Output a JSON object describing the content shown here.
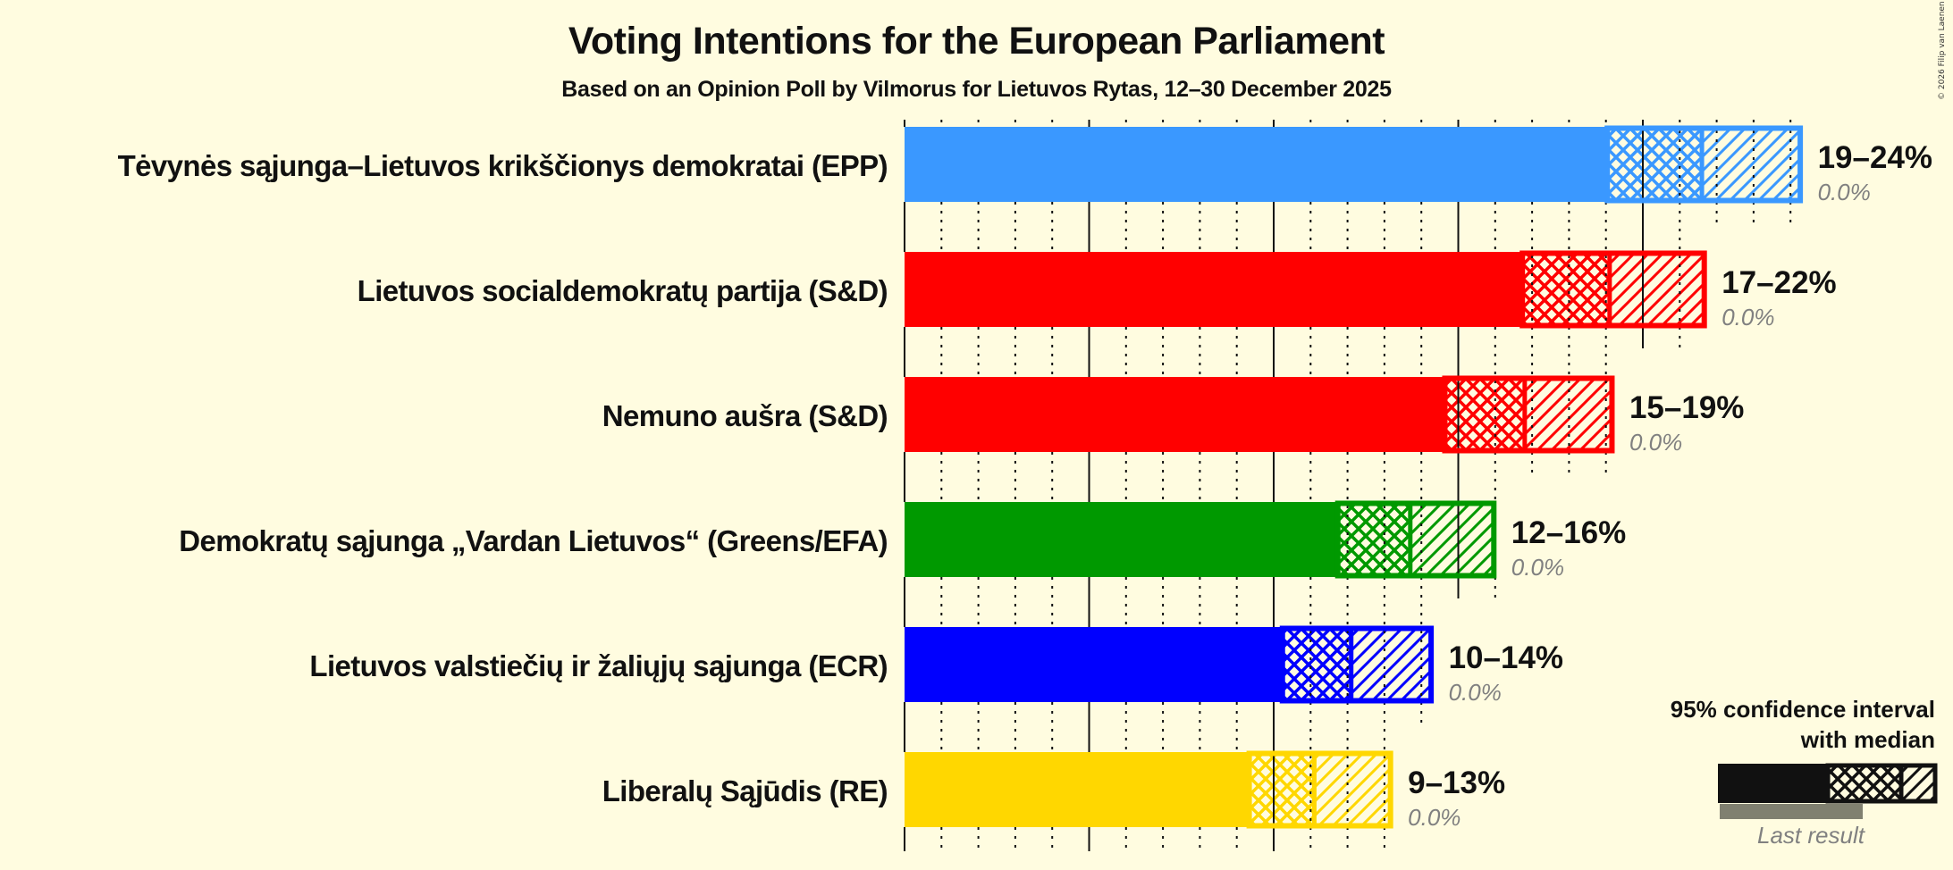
{
  "header": {
    "title": "Voting Intentions for the European Parliament",
    "subtitle": "Based on an Opinion Poll by Vilmorus for Lietuvos Rytas, 12–30 December 2025",
    "copyright": "© 2026 Filip van Laenen"
  },
  "legend": {
    "title_line1": "95% confidence interval",
    "title_line2": "with median",
    "last_result_label": "Last result"
  },
  "colors": {
    "background": "#fffce0",
    "EPP": "#3a98ff",
    "S&D": "#ff0000",
    "Greens/EFA": "#009900",
    "ECR": "#0000ff",
    "RE": "#ffd700",
    "legend": "#111111",
    "last_result": "#808070"
  },
  "chart_data": {
    "type": "bar",
    "orientation": "horizontal",
    "title": "Voting Intentions for the European Parliament",
    "subtitle": "Based on an Opinion Poll by Vilmorus for Lietuvos Rytas, 12–30 December 2025",
    "xlabel": "",
    "ylabel": "",
    "unit": "%",
    "xlim": [
      0,
      25
    ],
    "grid": {
      "major_every": 5,
      "minor_every": 1
    },
    "legend_position": "bottom-right",
    "categories": [
      "Tėvynės sąjunga–Lietuvos krikščionys demokratai (EPP)",
      "Lietuvos socialdemokratų partija (S&D)",
      "Nemuno aušra (S&D)",
      "Demokratų sąjunga „Vardan Lietuvos“ (Greens/EFA)",
      "Lietuvos valstiečių ir žaliųjų sąjunga (ECR)",
      "Liberalų Sąjūdis (RE)"
    ],
    "series": [
      {
        "name": "CI lower (95%)",
        "values": [
          19.0,
          16.7,
          14.6,
          11.7,
          10.2,
          9.3
        ]
      },
      {
        "name": "Median",
        "values": [
          21.6,
          19.1,
          16.8,
          13.7,
          12.1,
          11.1
        ]
      },
      {
        "name": "CI upper (95%)",
        "values": [
          24.3,
          21.7,
          19.2,
          16.0,
          14.3,
          13.2
        ]
      },
      {
        "name": "Last result",
        "values": [
          0.0,
          0.0,
          0.0,
          0.0,
          0.0,
          0.0
        ]
      }
    ],
    "rows": [
      {
        "label": "Tėvynės sąjunga–Lietuvos krikščionys demokratai (EPP)",
        "group": "EPP",
        "low": 19.0,
        "median": 21.6,
        "high": 24.3,
        "range_label": "19–24%",
        "last_result": "0.0%"
      },
      {
        "label": "Lietuvos socialdemokratų partija (S&D)",
        "group": "S&D",
        "low": 16.7,
        "median": 19.1,
        "high": 21.7,
        "range_label": "17–22%",
        "last_result": "0.0%"
      },
      {
        "label": "Nemuno aušra (S&D)",
        "group": "S&D",
        "low": 14.6,
        "median": 16.8,
        "high": 19.2,
        "range_label": "15–19%",
        "last_result": "0.0%"
      },
      {
        "label": "Demokratų sąjunga „Vardan Lietuvos“ (Greens/EFA)",
        "group": "Greens/EFA",
        "low": 11.7,
        "median": 13.7,
        "high": 16.0,
        "range_label": "12–16%",
        "last_result": "0.0%"
      },
      {
        "label": "Lietuvos valstiečių ir žaliųjų sąjunga (ECR)",
        "group": "ECR",
        "low": 10.2,
        "median": 12.1,
        "high": 14.3,
        "range_label": "10–14%",
        "last_result": "0.0%"
      },
      {
        "label": "Liberalų Sąjūdis (RE)",
        "group": "RE",
        "low": 9.3,
        "median": 11.1,
        "high": 13.2,
        "range_label": "9–13%",
        "last_result": "0.0%"
      }
    ]
  }
}
